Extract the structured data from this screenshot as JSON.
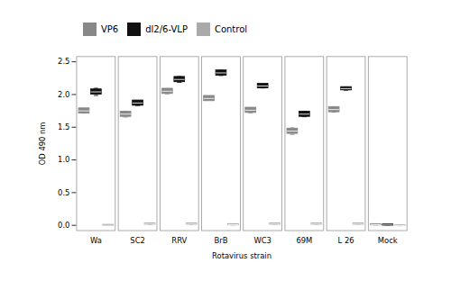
{
  "chart_data": {
    "type": "errorbar",
    "xlabel": "Rotavirus strain",
    "ylabel": "OD 490 nm",
    "categories": [
      "Wa",
      "SC2",
      "RRV",
      "BrB",
      "WC3",
      "69M",
      "L 26",
      "Mock"
    ],
    "series": [
      {
        "name": "VP6",
        "color": "#888888",
        "values": [
          1.75,
          1.7,
          2.05,
          1.94,
          1.76,
          1.44,
          1.77,
          0.01
        ],
        "errors": [
          0.035,
          0.045,
          0.04,
          0.0,
          0.04,
          0.05,
          0.04,
          0.004
        ],
        "box_half": [
          0.04,
          0.04,
          0.04,
          0.04,
          0.04,
          0.04,
          0.04,
          0.01
        ]
      },
      {
        "name": "dl2/6-VLP",
        "color": "#111111",
        "values": [
          2.04,
          1.87,
          2.23,
          2.33,
          2.13,
          1.7,
          2.09,
          0.005
        ],
        "errors": [
          0.055,
          0.04,
          0.045,
          0.04,
          0.03,
          0.04,
          0.025,
          0.004
        ],
        "box_half": [
          0.04,
          0.04,
          0.04,
          0.04,
          0.035,
          0.04,
          0.025,
          0.01
        ]
      },
      {
        "name": "Control",
        "color": "#aaaaaa",
        "values": [
          0.0,
          0.02,
          0.02,
          0.01,
          0.02,
          0.02,
          0.02,
          -0.005
        ],
        "errors": [
          0.005,
          0.01,
          0.008,
          0.005,
          0.005,
          0.005,
          0.005,
          0.003
        ],
        "box_half": [
          0.01,
          0.01,
          0.01,
          0.01,
          0.01,
          0.01,
          0.01,
          0.006
        ]
      }
    ],
    "ylim": [
      -0.08,
      2.58
    ],
    "yticks": [
      {
        "value": 0.0,
        "label": "0.0"
      },
      {
        "value": 0.5,
        "label": "0.5"
      },
      {
        "value": 1.0,
        "label": "1.0"
      },
      {
        "value": 1.5,
        "label": "1.5"
      },
      {
        "value": 2.0,
        "label": "2.0"
      },
      {
        "value": 2.5,
        "label": "2.5"
      }
    ],
    "legend": "upper left"
  }
}
